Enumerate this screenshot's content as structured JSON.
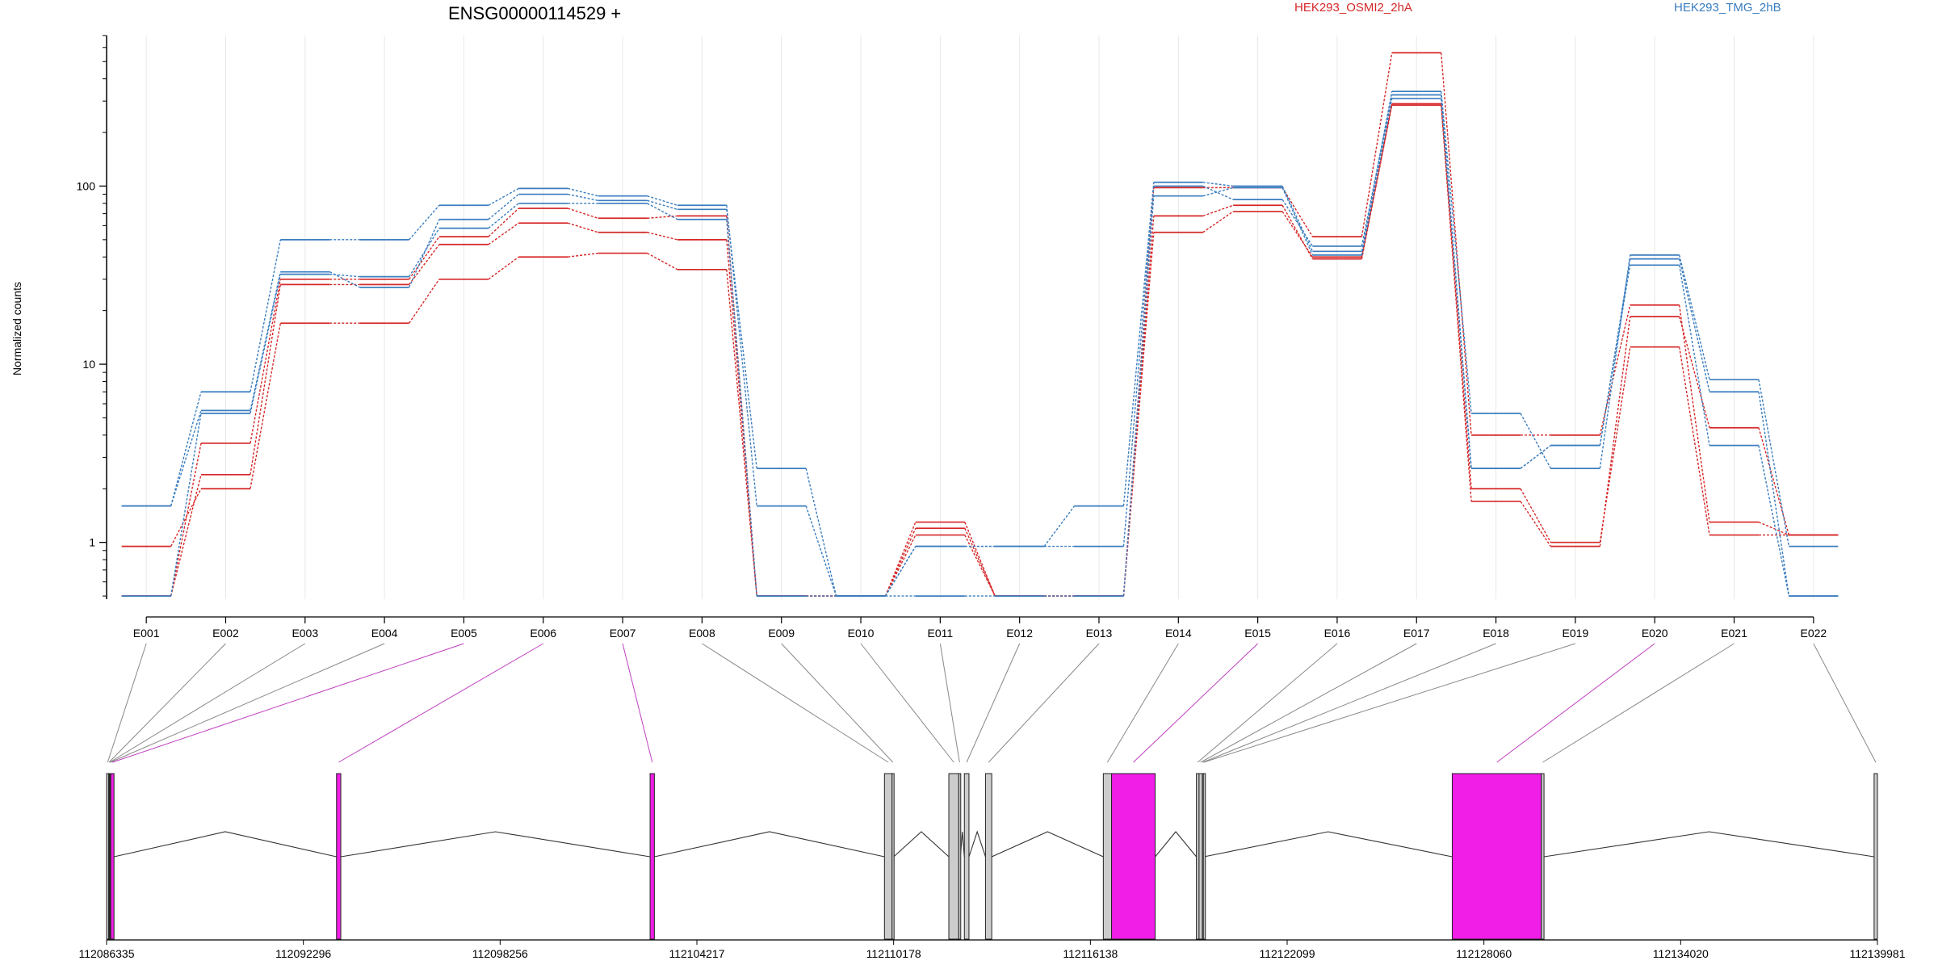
{
  "chart_data": {
    "type": "line",
    "title": "ENSG00000114529 +",
    "ylabel": "Normalized counts",
    "yscale": "log",
    "yticks": [
      1,
      10,
      100
    ],
    "ytick_labels": [
      "1",
      "10",
      "100"
    ],
    "ylim": [
      0.48,
      700
    ],
    "categories": [
      "E001",
      "E002",
      "E003",
      "E004",
      "E005",
      "E006",
      "E007",
      "E008",
      "E009",
      "E010",
      "E011",
      "E012",
      "E013",
      "E014",
      "E015",
      "E016",
      "E017",
      "E018",
      "E019",
      "E020",
      "E021",
      "E022"
    ],
    "legend_position": "top",
    "groups": [
      {
        "name": "HEK293_OSMI2_2hA",
        "color": "#d62728"
      },
      {
        "name": "HEK293_TMG_2hB",
        "color": "#3a7dbf"
      }
    ],
    "series": [
      {
        "group": 0,
        "values": [
          0.95,
          2.0,
          17,
          17,
          30,
          40,
          42,
          34,
          0.5,
          0.5,
          1.1,
          0.5,
          0.5,
          55,
          72,
          40,
          290,
          2.0,
          1.0,
          12.5,
          1.1,
          1.1
        ]
      },
      {
        "group": 0,
        "values": [
          0.5,
          2.4,
          28,
          28,
          47,
          62,
          55,
          50,
          0.5,
          0.5,
          1.2,
          0.5,
          0.5,
          68,
          78,
          39,
          285,
          1.7,
          0.95,
          18.5,
          4.4,
          1.1
        ]
      },
      {
        "group": 0,
        "values": [
          0.5,
          3.6,
          30,
          30,
          52,
          75,
          66,
          68,
          0.5,
          0.5,
          1.3,
          0.5,
          0.5,
          98,
          98,
          52,
          560,
          4.0,
          4.0,
          21.5,
          1.3,
          1.1
        ]
      },
      {
        "group": 1,
        "values": [
          1.6,
          7.0,
          50,
          50,
          78,
          97,
          88,
          78,
          1.6,
          0.5,
          0.95,
          0.95,
          1.6,
          105,
          100,
          43,
          340,
          5.3,
          2.6,
          41,
          8.2,
          0.95
        ]
      },
      {
        "group": 1,
        "values": [
          1.6,
          5.5,
          33,
          27,
          65,
          90,
          83,
          74,
          2.6,
          0.5,
          0.95,
          0.95,
          0.95,
          100,
          84,
          46,
          325,
          2.6,
          3.5,
          39,
          7.0,
          0.5
        ]
      },
      {
        "group": 1,
        "values": [
          0.5,
          5.3,
          32,
          31,
          58,
          80,
          80,
          65,
          0.5,
          0.5,
          0.5,
          0.5,
          0.5,
          88,
          98,
          41,
          310,
          2.6,
          3.5,
          36,
          3.5,
          0.5
        ]
      }
    ],
    "genomic_ticks": [
      "112086335",
      "112092296",
      "112098256",
      "112104217",
      "112110178",
      "112116138",
      "112122099",
      "112128060",
      "112134020",
      "112139981"
    ],
    "genomic_range": [
      112086335,
      112139981
    ],
    "exons": [
      {
        "id": "E001",
        "start": 112086335,
        "end": 112086400,
        "highlight": false
      },
      {
        "id": "E002",
        "start": 112086400,
        "end": 112086420,
        "highlight": false
      },
      {
        "id": "E003",
        "start": 112086420,
        "end": 112086440,
        "highlight": false
      },
      {
        "id": "E004",
        "start": 112086440,
        "end": 112086460,
        "highlight": false
      },
      {
        "id": "E005",
        "start": 112086460,
        "end": 112086560,
        "highlight": true
      },
      {
        "id": "E006",
        "start": 112093300,
        "end": 112093430,
        "highlight": true
      },
      {
        "id": "E007",
        "start": 112102800,
        "end": 112102930,
        "highlight": true
      },
      {
        "id": "E008",
        "start": 112109900,
        "end": 112110130,
        "highlight": false
      },
      {
        "id": "E009",
        "start": 112110130,
        "end": 112110180,
        "highlight": false
      },
      {
        "id": "E010",
        "start": 112111850,
        "end": 112112150,
        "highlight": false
      },
      {
        "id": "E011",
        "start": 112112150,
        "end": 112112200,
        "highlight": false
      },
      {
        "id": "E012",
        "start": 112112320,
        "end": 112112460,
        "highlight": false
      },
      {
        "id": "E013",
        "start": 112112960,
        "end": 112113150,
        "highlight": false
      },
      {
        "id": "E014",
        "start": 112116530,
        "end": 112116780,
        "highlight": false
      },
      {
        "id": "E015",
        "start": 112116780,
        "end": 112118100,
        "highlight": true
      },
      {
        "id": "E016",
        "start": 112119350,
        "end": 112119430,
        "highlight": false
      },
      {
        "id": "E017",
        "start": 112119430,
        "end": 112119530,
        "highlight": false
      },
      {
        "id": "E018",
        "start": 112119530,
        "end": 112119560,
        "highlight": false
      },
      {
        "id": "E019",
        "start": 112119560,
        "end": 112119580,
        "highlight": false
      },
      {
        "id": "E020",
        "start": 112127100,
        "end": 112129800,
        "highlight": true
      },
      {
        "id": "E021",
        "start": 112129800,
        "end": 112129880,
        "highlight": false
      },
      {
        "id": "E022",
        "start": 112139880,
        "end": 112139981,
        "highlight": false
      }
    ],
    "introns": [
      [
        112086560,
        112093300
      ],
      [
        112093430,
        112102800
      ],
      [
        112102930,
        112109900
      ],
      [
        112110180,
        112111850
      ],
      [
        112112200,
        112112320
      ],
      [
        112112460,
        112112960
      ],
      [
        112113150,
        112116530
      ],
      [
        112118100,
        112119350
      ],
      [
        112119580,
        112127100
      ],
      [
        112129880,
        112139880
      ]
    ],
    "colors": {
      "highlight_exon": "#f01ee6",
      "plain_exon": "#cccccc",
      "connector_plain": "#888888",
      "connector_highlight": "#c040c0",
      "grid": "#e8e8e8"
    }
  }
}
